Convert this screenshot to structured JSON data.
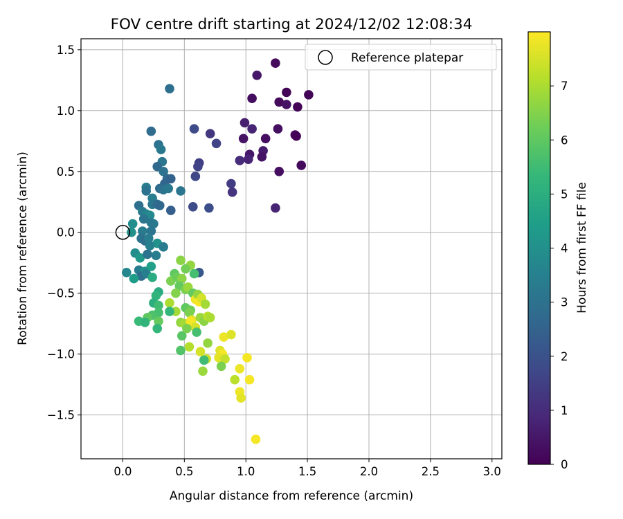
{
  "chart_data": {
    "type": "scatter",
    "title": "FOV centre drift starting at 2024/12/02 12:08:34",
    "xlabel": "Angular distance from reference (arcmin)",
    "ylabel": "Rotation from reference (arcmin)",
    "colorbar_label": "Hours from first FF file",
    "xlim": [
      -0.34,
      3.08
    ],
    "ylim": [
      -1.86,
      1.59
    ],
    "clim": [
      0,
      8
    ],
    "xticks": [
      0.0,
      0.5,
      1.0,
      1.5,
      2.0,
      2.5,
      3.0
    ],
    "xtick_labels": [
      "0.0",
      "0.5",
      "1.0",
      "1.5",
      "2.0",
      "2.5",
      "3.0"
    ],
    "yticks": [
      -1.5,
      -1.0,
      -0.5,
      0.0,
      0.5,
      1.0,
      1.5
    ],
    "ytick_labels": [
      "−1.5",
      "−1.0",
      "−0.5",
      "0.0",
      "0.5",
      "1.0",
      "1.5"
    ],
    "cticks": [
      0,
      1,
      2,
      3,
      4,
      5,
      6,
      7
    ],
    "ctick_labels": [
      "0",
      "1",
      "2",
      "3",
      "4",
      "5",
      "6",
      "7"
    ],
    "grid": true,
    "colormap": "viridis",
    "legend": {
      "placement": "top-right",
      "label": "Reference platepar"
    },
    "reference_point": {
      "x": 0.0,
      "y": 0.0
    },
    "points": [
      {
        "x": 1.24,
        "y": 1.39,
        "t": 0.2
      },
      {
        "x": 1.09,
        "y": 1.29,
        "t": 0.5
      },
      {
        "x": 1.33,
        "y": 1.15,
        "t": 0.1
      },
      {
        "x": 1.51,
        "y": 1.13,
        "t": 0.1
      },
      {
        "x": 1.05,
        "y": 1.1,
        "t": 0.3
      },
      {
        "x": 1.27,
        "y": 1.07,
        "t": 0.2
      },
      {
        "x": 1.33,
        "y": 1.05,
        "t": 0.4
      },
      {
        "x": 1.42,
        "y": 1.03,
        "t": 0.1
      },
      {
        "x": 0.99,
        "y": 0.9,
        "t": 0.7
      },
      {
        "x": 1.05,
        "y": 0.85,
        "t": 0.8
      },
      {
        "x": 1.26,
        "y": 0.85,
        "t": 0.3
      },
      {
        "x": 1.4,
        "y": 0.8,
        "t": 0.2
      },
      {
        "x": 1.41,
        "y": 0.79,
        "t": 0.05
      },
      {
        "x": 0.58,
        "y": 0.85,
        "t": 1.8
      },
      {
        "x": 0.71,
        "y": 0.81,
        "t": 1.3
      },
      {
        "x": 0.76,
        "y": 0.73,
        "t": 1.6
      },
      {
        "x": 0.98,
        "y": 0.77,
        "t": 0.4
      },
      {
        "x": 1.16,
        "y": 0.77,
        "t": 0.3
      },
      {
        "x": 1.14,
        "y": 0.67,
        "t": 0.6
      },
      {
        "x": 1.03,
        "y": 0.64,
        "t": 0.5
      },
      {
        "x": 1.13,
        "y": 0.62,
        "t": 0.4
      },
      {
        "x": 0.95,
        "y": 0.59,
        "t": 1.0
      },
      {
        "x": 1.02,
        "y": 0.6,
        "t": 0.8
      },
      {
        "x": 1.45,
        "y": 0.55,
        "t": 0.2
      },
      {
        "x": 1.27,
        "y": 0.5,
        "t": 0.3
      },
      {
        "x": 0.62,
        "y": 0.57,
        "t": 1.5
      },
      {
        "x": 0.61,
        "y": 0.54,
        "t": 1.6
      },
      {
        "x": 0.59,
        "y": 0.46,
        "t": 1.7
      },
      {
        "x": 0.88,
        "y": 0.4,
        "t": 1.4
      },
      {
        "x": 0.89,
        "y": 0.33,
        "t": 1.2
      },
      {
        "x": 0.57,
        "y": 0.21,
        "t": 1.8
      },
      {
        "x": 0.7,
        "y": 0.2,
        "t": 1.9
      },
      {
        "x": 1.24,
        "y": 0.2,
        "t": 0.8
      },
      {
        "x": 0.38,
        "y": 1.18,
        "t": 2.9
      },
      {
        "x": 0.23,
        "y": 0.83,
        "t": 2.8
      },
      {
        "x": 0.29,
        "y": 0.72,
        "t": 3.0
      },
      {
        "x": 0.31,
        "y": 0.68,
        "t": 3.2
      },
      {
        "x": 0.32,
        "y": 0.58,
        "t": 3.1
      },
      {
        "x": 0.28,
        "y": 0.54,
        "t": 2.7
      },
      {
        "x": 0.33,
        "y": 0.5,
        "t": 3.0
      },
      {
        "x": 0.36,
        "y": 0.44,
        "t": 2.7
      },
      {
        "x": 0.39,
        "y": 0.44,
        "t": 2.5
      },
      {
        "x": 0.34,
        "y": 0.4,
        "t": 2.6
      },
      {
        "x": 0.19,
        "y": 0.37,
        "t": 3.3
      },
      {
        "x": 0.19,
        "y": 0.34,
        "t": 3.0
      },
      {
        "x": 0.3,
        "y": 0.36,
        "t": 2.8
      },
      {
        "x": 0.33,
        "y": 0.35,
        "t": 3.0
      },
      {
        "x": 0.37,
        "y": 0.36,
        "t": 3.2
      },
      {
        "x": 0.47,
        "y": 0.34,
        "t": 3.1
      },
      {
        "x": 0.24,
        "y": 0.28,
        "t": 3.4
      },
      {
        "x": 0.24,
        "y": 0.23,
        "t": 3.2
      },
      {
        "x": 0.28,
        "y": 0.23,
        "t": 2.8
      },
      {
        "x": 0.3,
        "y": 0.22,
        "t": 2.7
      },
      {
        "x": 0.13,
        "y": 0.22,
        "t": 2.9
      },
      {
        "x": 0.16,
        "y": 0.17,
        "t": 3.3
      },
      {
        "x": 0.19,
        "y": 0.15,
        "t": 3.6
      },
      {
        "x": 0.22,
        "y": 0.14,
        "t": 3.8
      },
      {
        "x": 0.39,
        "y": 0.18,
        "t": 2.4
      },
      {
        "x": 0.17,
        "y": 0.11,
        "t": 3.1
      },
      {
        "x": 0.23,
        "y": 0.08,
        "t": 3.2
      },
      {
        "x": 0.25,
        "y": 0.07,
        "t": 3.2
      },
      {
        "x": 0.08,
        "y": 0.07,
        "t": 3.9
      },
      {
        "x": 0.16,
        "y": 0.01,
        "t": 3.3
      },
      {
        "x": 0.23,
        "y": 0.01,
        "t": 3.1
      },
      {
        "x": 0.07,
        "y": 0.0,
        "t": 4.0
      },
      {
        "x": 0.15,
        "y": -0.05,
        "t": 3.0
      },
      {
        "x": 0.18,
        "y": -0.07,
        "t": 2.9
      },
      {
        "x": 0.21,
        "y": -0.05,
        "t": 3.4
      },
      {
        "x": 0.28,
        "y": -0.09,
        "t": 4.1
      },
      {
        "x": 0.22,
        "y": -0.11,
        "t": 3.5
      },
      {
        "x": 0.33,
        "y": -0.12,
        "t": 3.3
      },
      {
        "x": 0.1,
        "y": -0.17,
        "t": 3.9
      },
      {
        "x": 0.14,
        "y": -0.21,
        "t": 4.3
      },
      {
        "x": 0.2,
        "y": -0.18,
        "t": 3.0
      },
      {
        "x": 0.27,
        "y": -0.19,
        "t": 3.4
      },
      {
        "x": 0.62,
        "y": -0.33,
        "t": 2.2
      },
      {
        "x": 0.03,
        "y": -0.33,
        "t": 3.7
      },
      {
        "x": 0.13,
        "y": -0.31,
        "t": 3.3
      },
      {
        "x": 0.18,
        "y": -0.32,
        "t": 4.1
      },
      {
        "x": 0.15,
        "y": -0.36,
        "t": 2.9
      },
      {
        "x": 0.09,
        "y": -0.38,
        "t": 4.4
      },
      {
        "x": 0.19,
        "y": -0.34,
        "t": 3.4
      },
      {
        "x": 0.23,
        "y": -0.28,
        "t": 4.5
      },
      {
        "x": 0.24,
        "y": -0.37,
        "t": 4.9
      },
      {
        "x": 0.47,
        "y": -0.23,
        "t": 6.6
      },
      {
        "x": 0.55,
        "y": -0.27,
        "t": 6.7
      },
      {
        "x": 0.51,
        "y": -0.3,
        "t": 6.3
      },
      {
        "x": 0.42,
        "y": -0.34,
        "t": 6.0
      },
      {
        "x": 0.58,
        "y": -0.34,
        "t": 5.6
      },
      {
        "x": 0.39,
        "y": -0.4,
        "t": 6.4
      },
      {
        "x": 0.44,
        "y": -0.37,
        "t": 6.2
      },
      {
        "x": 0.48,
        "y": -0.38,
        "t": 6.6
      },
      {
        "x": 0.46,
        "y": -0.44,
        "t": 6.1
      },
      {
        "x": 0.51,
        "y": -0.47,
        "t": 6.4
      },
      {
        "x": 0.29,
        "y": -0.49,
        "t": 4.9
      },
      {
        "x": 0.27,
        "y": -0.52,
        "t": 5.2
      },
      {
        "x": 0.43,
        "y": -0.5,
        "t": 6.5
      },
      {
        "x": 0.53,
        "y": -0.45,
        "t": 6.8
      },
      {
        "x": 0.57,
        "y": -0.5,
        "t": 6.1
      },
      {
        "x": 0.59,
        "y": -0.55,
        "t": 7.8
      },
      {
        "x": 0.61,
        "y": -0.51,
        "t": 6.7
      },
      {
        "x": 0.62,
        "y": -0.57,
        "t": 7.9
      },
      {
        "x": 0.64,
        "y": -0.54,
        "t": 7.5
      },
      {
        "x": 0.67,
        "y": -0.59,
        "t": 6.9
      },
      {
        "x": 0.25,
        "y": -0.58,
        "t": 5.0
      },
      {
        "x": 0.29,
        "y": -0.6,
        "t": 5.5
      },
      {
        "x": 0.38,
        "y": -0.58,
        "t": 7.0
      },
      {
        "x": 0.43,
        "y": -0.65,
        "t": 6.9
      },
      {
        "x": 0.51,
        "y": -0.62,
        "t": 6.0
      },
      {
        "x": 0.55,
        "y": -0.64,
        "t": 6.2
      },
      {
        "x": 0.54,
        "y": -0.66,
        "t": 6.4
      },
      {
        "x": 0.38,
        "y": -0.65,
        "t": 5.3
      },
      {
        "x": 0.29,
        "y": -0.66,
        "t": 5.6
      },
      {
        "x": 0.24,
        "y": -0.68,
        "t": 5.7
      },
      {
        "x": 0.2,
        "y": -0.7,
        "t": 6.0
      },
      {
        "x": 0.13,
        "y": -0.73,
        "t": 5.4
      },
      {
        "x": 0.18,
        "y": -0.74,
        "t": 5.2
      },
      {
        "x": 0.29,
        "y": -0.73,
        "t": 6.1
      },
      {
        "x": 0.28,
        "y": -0.79,
        "t": 5.3
      },
      {
        "x": 0.47,
        "y": -0.74,
        "t": 6.7
      },
      {
        "x": 0.5,
        "y": -0.75,
        "t": 6.9
      },
      {
        "x": 0.56,
        "y": -0.72,
        "t": 7.6
      },
      {
        "x": 0.55,
        "y": -0.73,
        "t": 7.9
      },
      {
        "x": 0.59,
        "y": -0.78,
        "t": 7.5
      },
      {
        "x": 0.6,
        "y": -0.82,
        "t": 5.6
      },
      {
        "x": 0.63,
        "y": -0.7,
        "t": 6.8
      },
      {
        "x": 0.66,
        "y": -0.73,
        "t": 6.6
      },
      {
        "x": 0.69,
        "y": -0.69,
        "t": 7.2
      },
      {
        "x": 0.71,
        "y": -0.7,
        "t": 7.0
      },
      {
        "x": 0.48,
        "y": -0.85,
        "t": 5.9
      },
      {
        "x": 0.52,
        "y": -0.79,
        "t": 6.4
      },
      {
        "x": 0.82,
        "y": -0.86,
        "t": 7.8
      },
      {
        "x": 0.88,
        "y": -0.84,
        "t": 7.6
      },
      {
        "x": 0.54,
        "y": -0.94,
        "t": 7.1
      },
      {
        "x": 0.69,
        "y": -0.91,
        "t": 6.7
      },
      {
        "x": 0.47,
        "y": -0.97,
        "t": 5.8
      },
      {
        "x": 0.63,
        "y": -0.98,
        "t": 7.5
      },
      {
        "x": 0.79,
        "y": -0.97,
        "t": 7.6
      },
      {
        "x": 0.81,
        "y": -1.0,
        "t": 7.9
      },
      {
        "x": 0.78,
        "y": -1.03,
        "t": 7.7
      },
      {
        "x": 0.68,
        "y": -1.04,
        "t": 7.4
      },
      {
        "x": 0.66,
        "y": -1.05,
        "t": 5.5
      },
      {
        "x": 0.83,
        "y": -1.04,
        "t": 7.3
      },
      {
        "x": 1.01,
        "y": -1.03,
        "t": 7.9
      },
      {
        "x": 0.8,
        "y": -1.1,
        "t": 6.4
      },
      {
        "x": 0.95,
        "y": -1.12,
        "t": 7.8
      },
      {
        "x": 0.65,
        "y": -1.14,
        "t": 6.8
      },
      {
        "x": 0.91,
        "y": -1.21,
        "t": 7.2
      },
      {
        "x": 1.03,
        "y": -1.21,
        "t": 7.9
      },
      {
        "x": 0.95,
        "y": -1.31,
        "t": 7.8
      },
      {
        "x": 0.96,
        "y": -1.36,
        "t": 7.7
      },
      {
        "x": 1.08,
        "y": -1.7,
        "t": 7.9
      }
    ]
  }
}
